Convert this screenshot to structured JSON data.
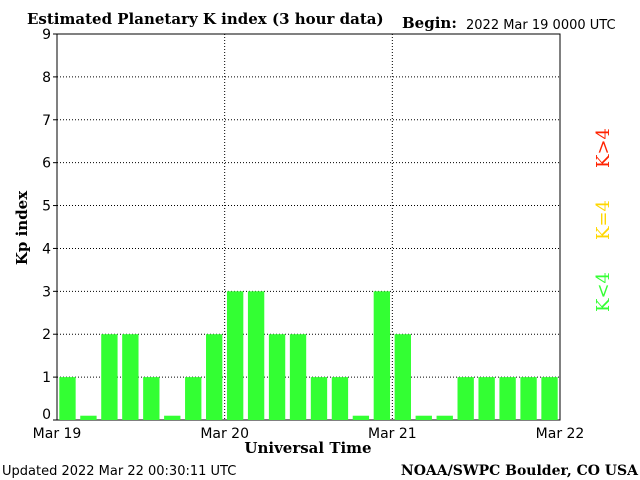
{
  "header": {
    "title": "Estimated Planetary K index (3 hour data)",
    "begin_label": "Begin:",
    "begin_value": "2022 Mar 19 0000 UTC"
  },
  "footer": {
    "updated": "Updated 2022 Mar 22 00:30:11 UTC",
    "source": "NOAA/SWPC Boulder, CO USA"
  },
  "legend": {
    "items": [
      {
        "label": "K<4",
        "color": "#33ff33"
      },
      {
        "label": "K=4",
        "color": "#ffd700"
      },
      {
        "label": "K>4",
        "color": "#ff2200"
      }
    ]
  },
  "colors": {
    "bar": "#33ff33",
    "axis": "#000000",
    "grid": "#000000"
  },
  "chart_data": {
    "type": "bar",
    "xlabel": "Universal Time",
    "ylabel": "Kp index",
    "ylim": [
      0,
      9
    ],
    "yticks": [
      "0",
      "1",
      "2",
      "3",
      "4",
      "5",
      "6",
      "7",
      "8",
      "9"
    ],
    "xticks": [
      "Mar 19",
      "Mar 20",
      "Mar 21",
      "Mar 22"
    ],
    "values": [
      1,
      0.1,
      2,
      2,
      1,
      0.1,
      1,
      2,
      3,
      3,
      2,
      2,
      1,
      1,
      0.1,
      3,
      2,
      0.1,
      0.1,
      1,
      1,
      1,
      1,
      1
    ],
    "grid": true
  }
}
